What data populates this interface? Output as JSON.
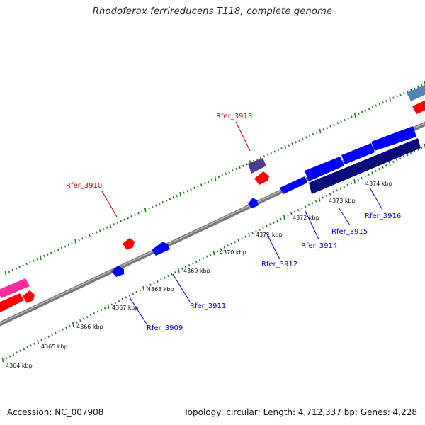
{
  "title": "Rhodoferax ferrireducens T118, complete genome",
  "footer": {
    "accession": "Accession: NC_007908",
    "summary": "Topology: circular; Length: 4,712,337 bp; Genes: 4,228"
  },
  "colors": {
    "backbone": "#8c8c8c",
    "tick": "#1a7a1a",
    "forward_gene": "#ff0000",
    "reverse_gene": "#0000ff",
    "dark_gene": "#0a0a7a",
    "purple_gene": "#4f3d8f",
    "pink_gene": "#ff2d9b",
    "steel_gene": "#4f86b6",
    "forward_label": "#cc0000",
    "reverse_label": "#0000cc"
  },
  "kbp_labels": [
    "4364 kbp",
    "4365 kbp",
    "4366 kbp",
    "4367 kbp",
    "4368 kbp",
    "4369 kbp",
    "4370 kbp",
    "4371 kbp",
    "4372 kbp",
    "4373 kbp",
    "4374 kbp"
  ],
  "gene_labels": [
    {
      "name": "Rfer_3910",
      "strand": "forward"
    },
    {
      "name": "Rfer_3913",
      "strand": "forward"
    },
    {
      "name": "Rfer_3909",
      "strand": "reverse"
    },
    {
      "name": "Rfer_3911",
      "strand": "reverse"
    },
    {
      "name": "Rfer_3912",
      "strand": "reverse"
    },
    {
      "name": "Rfer_3914",
      "strand": "reverse"
    },
    {
      "name": "Rfer_3915",
      "strand": "reverse"
    },
    {
      "name": "Rfer_3916",
      "strand": "reverse"
    }
  ]
}
